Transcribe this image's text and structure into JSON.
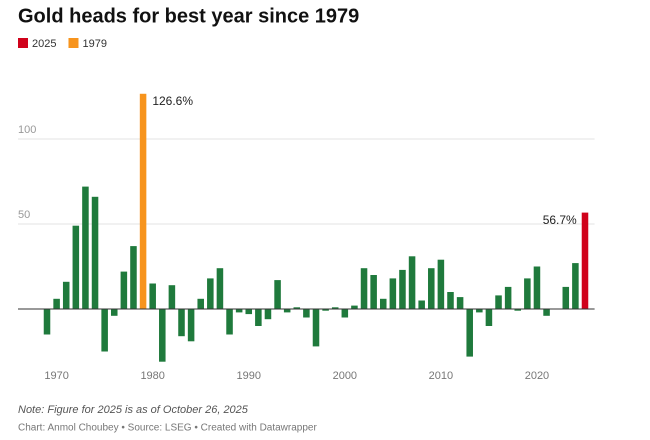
{
  "chart_data": {
    "type": "bar",
    "title": "Gold heads for best year since 1979",
    "note": "Note: Figure for 2025 is as of October 26, 2025",
    "source": "Chart: Anmol Choubey • Source: LSEG • Created with Datawrapper",
    "x": [
      1969,
      1970,
      1971,
      1972,
      1973,
      1974,
      1975,
      1976,
      1977,
      1978,
      1979,
      1980,
      1981,
      1982,
      1983,
      1984,
      1985,
      1986,
      1987,
      1988,
      1989,
      1990,
      1991,
      1992,
      1993,
      1994,
      1995,
      1996,
      1997,
      1998,
      1999,
      2000,
      2001,
      2002,
      2003,
      2004,
      2005,
      2006,
      2007,
      2008,
      2009,
      2010,
      2011,
      2012,
      2013,
      2014,
      2015,
      2016,
      2017,
      2018,
      2019,
      2020,
      2021,
      2022,
      2023,
      2024,
      2025
    ],
    "values": [
      -15,
      6,
      16,
      49,
      72,
      66,
      -25,
      -4,
      22,
      37,
      126.6,
      15,
      -31,
      14,
      -16,
      -19,
      6,
      18,
      24,
      -15,
      -2,
      -3,
      -10,
      -6,
      17,
      -2,
      1,
      -5,
      -22,
      -1,
      1,
      -5,
      2,
      24,
      20,
      6,
      18,
      23,
      31,
      5,
      24,
      29,
      10,
      7,
      -28,
      -2,
      -10,
      8,
      13,
      -1,
      18,
      25,
      -4,
      0,
      13,
      27,
      56.7
    ],
    "value_labels": [
      null,
      null,
      null,
      null,
      null,
      null,
      null,
      null,
      null,
      null,
      "126.6%",
      null,
      null,
      null,
      null,
      null,
      null,
      null,
      null,
      null,
      null,
      null,
      null,
      null,
      null,
      null,
      null,
      null,
      null,
      null,
      null,
      null,
      null,
      null,
      null,
      null,
      null,
      null,
      null,
      null,
      null,
      null,
      null,
      null,
      null,
      null,
      null,
      null,
      null,
      null,
      null,
      null,
      null,
      null,
      null,
      null,
      "56.7%"
    ],
    "color": "#1f7a3c",
    "highlights": [
      {
        "name": "2025",
        "color": "#d0021b"
      },
      {
        "name": "1979",
        "color": "#f7941d"
      }
    ],
    "xlim": [
      1968,
      2026
    ],
    "xticks": [
      1970,
      1980,
      1990,
      2000,
      2010,
      2020
    ],
    "ylim": [
      -40,
      130
    ],
    "yticks": [
      50,
      100
    ],
    "grid": true
  }
}
